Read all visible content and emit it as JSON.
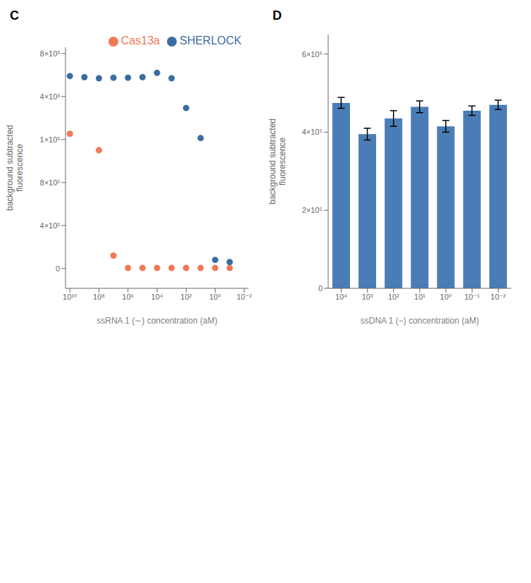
{
  "chart_data": [
    {
      "type": "scatter",
      "title": "C",
      "x_label": "ssRNA 1 (∼) concentration (aM)",
      "y_label": "background subtracted\nfluorescence",
      "series": [
        {
          "name": "Cas13a",
          "color": "#f07857",
          "x": [
            10000000000.0,
            100000000.0,
            10000000.0,
            1000000.0,
            100000.0,
            10000.0,
            1000.0,
            100.0,
            10.0,
            1.0,
            0.1
          ],
          "values": [
            1400,
            950,
            120,
            5,
            5,
            5,
            5,
            5,
            5,
            5,
            5
          ]
        },
        {
          "name": "SHERLOCK",
          "color": "#3b6ea0",
          "x": [
            10000000000.0,
            1000000000.0,
            100000000.0,
            10000000.0,
            1000000.0,
            100000.0,
            10000.0,
            1000.0,
            100.0,
            10.0,
            1.0,
            0.1
          ],
          "values": [
            5900,
            5800,
            5700,
            5750,
            5750,
            5800,
            6200,
            5700,
            3200,
            1100,
            80,
            60
          ]
        }
      ],
      "log": "x",
      "xlim": [
        20000000000.0,
        0.005
      ],
      "xticks": [
        {
          "value": 10000000000.0,
          "label": "10¹⁰"
        },
        {
          "value": 100000000.0,
          "label": "10⁸"
        },
        {
          "value": 1000000.0,
          "label": "10⁶"
        },
        {
          "value": 10000.0,
          "label": "10⁴"
        },
        {
          "value": 100,
          "label": "10²"
        },
        {
          "value": 1,
          "label": "10⁰"
        },
        {
          "value": 0.01,
          "label": "10⁻²"
        }
      ],
      "ylim": [
        -184.6,
        8583.3
      ],
      "yticks": [
        0,
        {
          "value": 400,
          "label": "4×10²"
        },
        {
          "value": 800,
          "label": "8×10²"
        },
        {
          "value": 1000,
          "label": "1×10³"
        },
        {
          "value": 4000,
          "label": "4×10³"
        },
        {
          "value": 8000,
          "label": "8×10³"
        }
      ],
      "legend": "upper right"
    },
    {
      "type": "bar",
      "title": "D",
      "x_label": "ssDNA 1 (−) concentration (aM)",
      "y_label": "background subtracted\nfluorescence",
      "categories": [
        "10⁴",
        "10³",
        "10²",
        "10¹",
        "10⁰",
        "10⁻¹",
        "10⁻²"
      ],
      "values": [
        475000,
        395000,
        435000,
        465000,
        415000,
        455000,
        470000
      ],
      "errors": [
        14000,
        15000,
        20000,
        15000,
        15000,
        12000,
        12000
      ],
      "color": "#4a7db5",
      "ylim": [
        0,
        650000
      ],
      "yticks": [
        0,
        {
          "value": 200000,
          "label": "2×10⁵"
        },
        {
          "value": 400000,
          "label": "4×10⁵"
        },
        {
          "value": 600000,
          "label": "6×10⁵"
        }
      ]
    }
  ]
}
